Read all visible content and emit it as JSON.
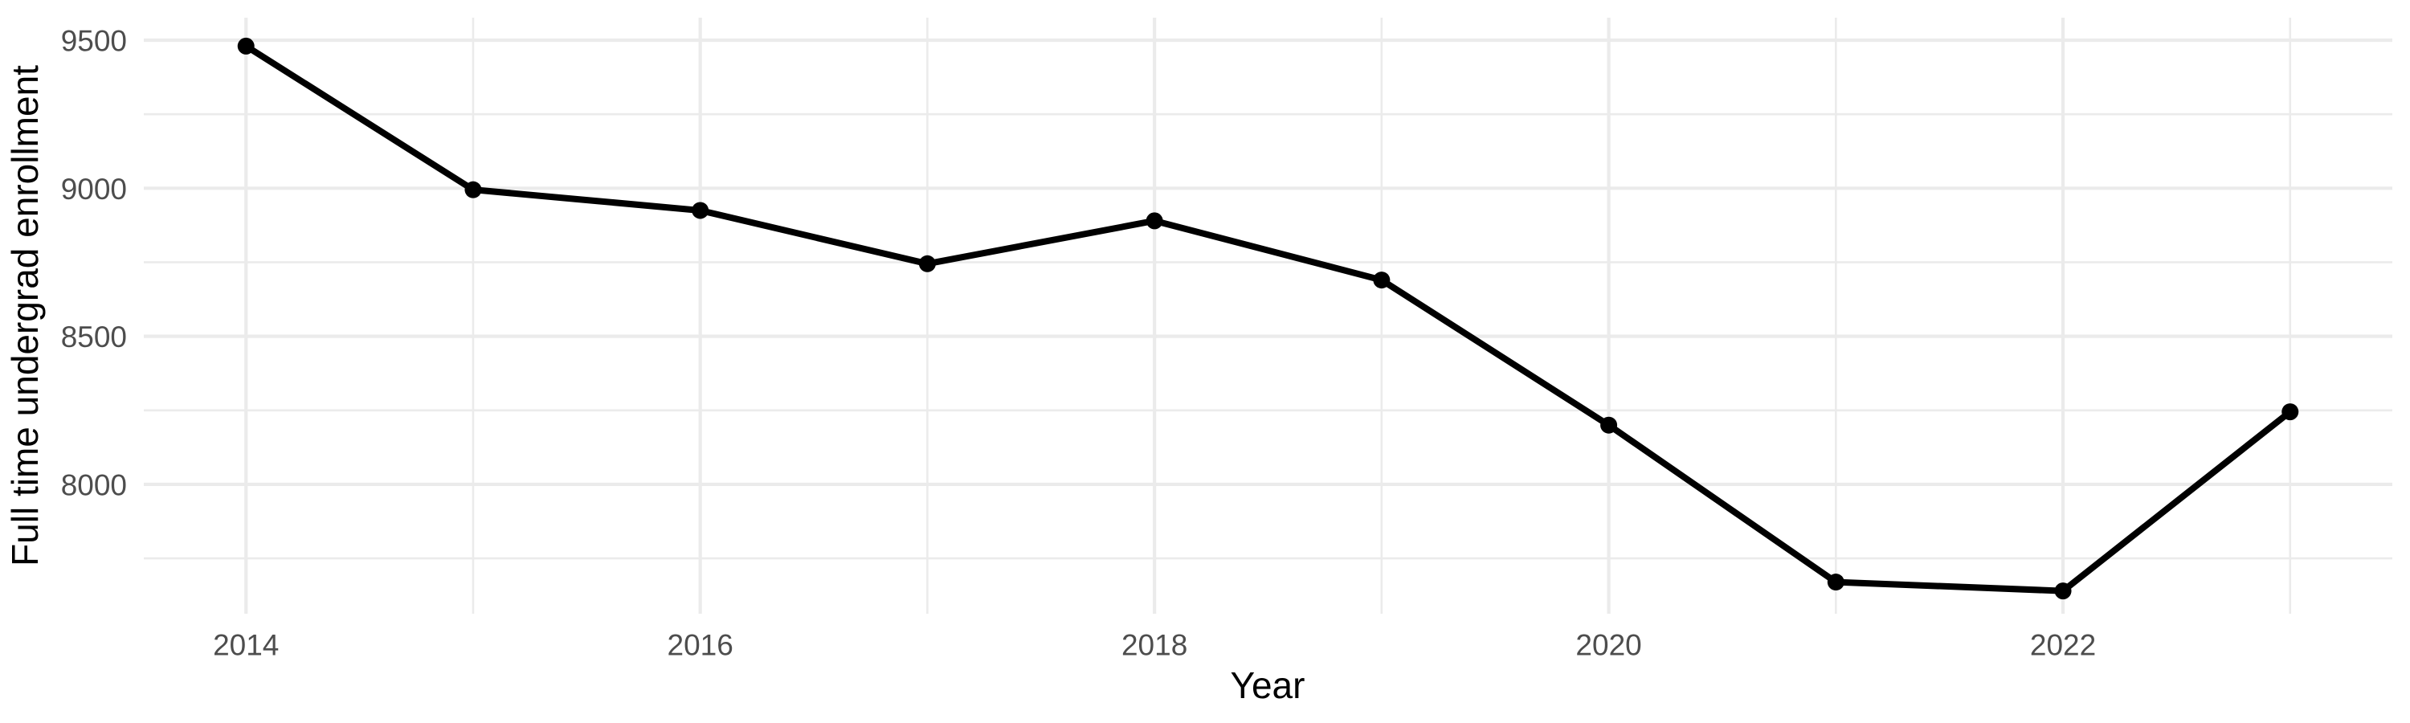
{
  "chart_data": {
    "type": "line",
    "title": "",
    "xlabel": "Year",
    "ylabel": "Full time undergrad enrollment",
    "x": [
      2014,
      2015,
      2016,
      2017,
      2018,
      2019,
      2020,
      2021,
      2022,
      2023
    ],
    "values": [
      9480,
      8995,
      8925,
      8745,
      8890,
      8690,
      8200,
      7670,
      7640,
      8245
    ],
    "x_ticks": [
      2014,
      2016,
      2018,
      2020,
      2022
    ],
    "x_minor_ticks": [
      2015,
      2017,
      2019,
      2021,
      2023
    ],
    "y_ticks": [
      9500,
      9000,
      8500,
      8000
    ],
    "y_minor_ticks": [
      9250,
      8750,
      8250,
      7750
    ],
    "xlim": [
      2013.55,
      2023.45
    ],
    "ylim": [
      7563,
      9576
    ],
    "grid": true,
    "legend": false,
    "point_marker": "circle",
    "colors": {
      "line": "#000000",
      "point": "#000000",
      "grid": "#ebebeb",
      "tick_text": "#4d4d4d",
      "axis_title_text": "#000000",
      "background": "#ffffff"
    }
  }
}
